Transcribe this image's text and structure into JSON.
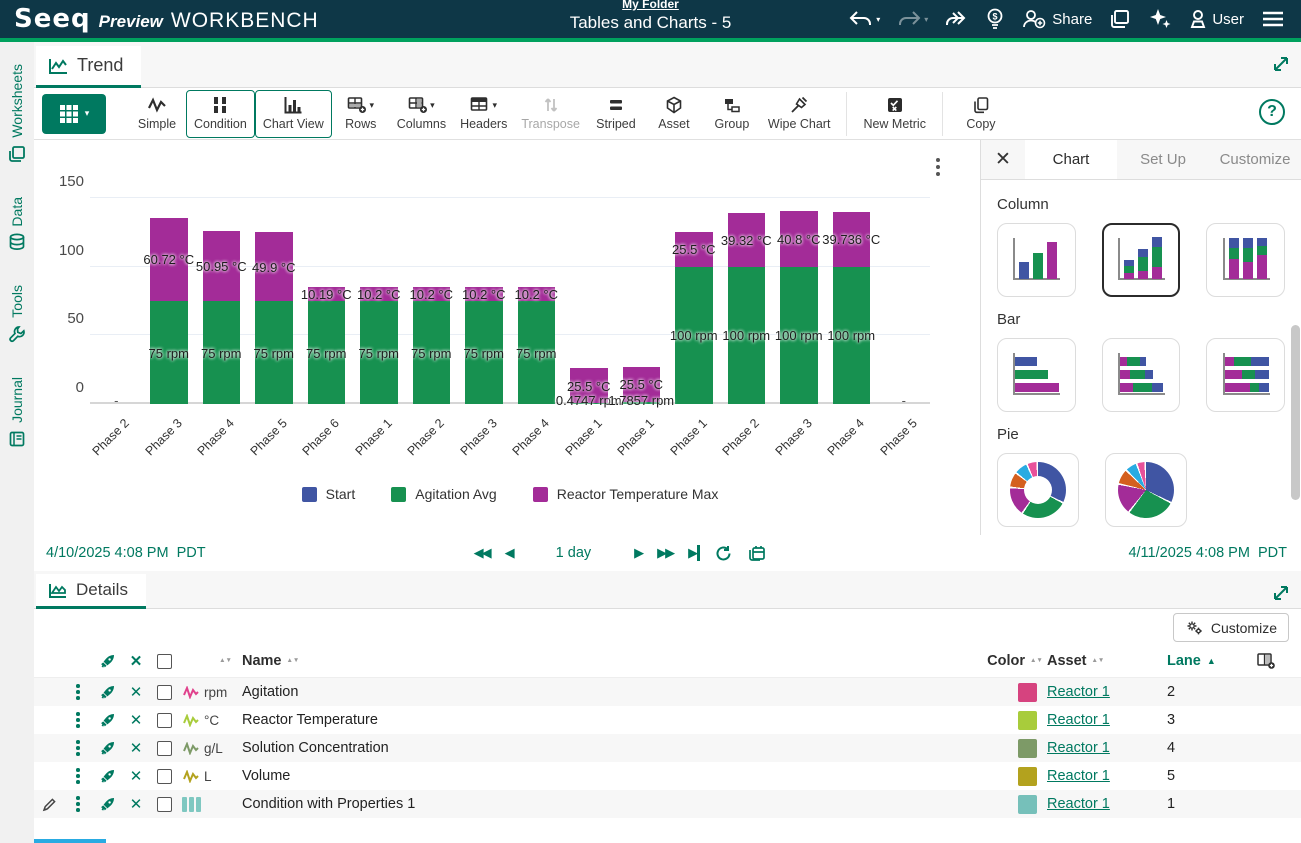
{
  "header": {
    "logo_seeq": "Seeq",
    "logo_preview": "Preview",
    "logo_workbench": "WORKBENCH",
    "folder_link": "My Folder",
    "title": "Tables and Charts - 5",
    "share_label": "Share",
    "user_label": "User"
  },
  "sidebar": {
    "items": [
      {
        "label": "Worksheets",
        "icon": "worksheets-icon"
      },
      {
        "label": "Data",
        "icon": "database-icon"
      },
      {
        "label": "Tools",
        "icon": "wrench-icon"
      },
      {
        "label": "Journal",
        "icon": "journal-icon"
      }
    ]
  },
  "trend": {
    "tab_label": "Trend",
    "toolbar": {
      "buttons": [
        {
          "label": "Simple"
        },
        {
          "label": "Condition"
        },
        {
          "label": "Chart View"
        },
        {
          "label": "Rows"
        },
        {
          "label": "Columns"
        },
        {
          "label": "Headers"
        },
        {
          "label": "Transpose"
        },
        {
          "label": "Striped"
        },
        {
          "label": "Asset"
        },
        {
          "label": "Group"
        },
        {
          "label": "Wipe Chart"
        },
        {
          "label": "New Metric"
        },
        {
          "label": "Copy"
        }
      ]
    }
  },
  "chart_data": {
    "type": "bar",
    "stacked": true,
    "categories": [
      "Phase 2",
      "Phase 3",
      "Phase 4",
      "Phase 5",
      "Phase 6",
      "Phase 1",
      "Phase 2",
      "Phase 3",
      "Phase 4",
      "Phase 1",
      "Phase 1",
      "Phase 1",
      "Phase 2",
      "Phase 3",
      "Phase 4",
      "Phase 5"
    ],
    "series": [
      {
        "name": "Start",
        "color": "#4055a3",
        "values": [
          null,
          null,
          null,
          null,
          null,
          null,
          null,
          null,
          null,
          null,
          null,
          null,
          null,
          null,
          null,
          null
        ],
        "labels": [
          "",
          "",
          "",
          "",
          "",
          "",
          "",
          "",
          "",
          "",
          "",
          "",
          "",
          "",
          "",
          ""
        ]
      },
      {
        "name": "Agitation Avg",
        "color": "#179150",
        "values": [
          null,
          75,
          75,
          75,
          75,
          75,
          75,
          75,
          75,
          0.4747,
          1.7857,
          100,
          100,
          100,
          100,
          null
        ],
        "labels": [
          "",
          "75 rpm",
          "75 rpm",
          "75 rpm",
          "75 rpm",
          "75 rpm",
          "75 rpm",
          "75 rpm",
          "75 rpm",
          "0.4747 rpm",
          "1.7857 rpm",
          "100 rpm",
          "100 rpm",
          "100 rpm",
          "100 rpm",
          ""
        ]
      },
      {
        "name": "Reactor Temperature Max",
        "color": "#a32c98",
        "values": [
          null,
          60.72,
          50.95,
          49.9,
          10.19,
          10.2,
          10.2,
          10.2,
          10.2,
          25.5,
          25.5,
          25.5,
          39.32,
          40.8,
          39.736,
          null
        ],
        "labels": [
          "",
          "60.72 °C",
          "50.95 °C",
          "49.9 °C",
          "10.19 °C",
          "10.2 °C",
          "10.2 °C",
          "10.2 °C",
          "10.2 °C",
          "25.5 °C",
          "25.5 °C",
          "25.5 °C",
          "39.32 °C",
          "40.8 °C",
          "39.736 °C",
          ""
        ]
      }
    ],
    "ylim": [
      0,
      150
    ],
    "yticks": [
      0,
      50,
      100,
      150
    ],
    "legend": [
      "Start",
      "Agitation Avg",
      "Reactor Temperature Max"
    ],
    "legend_position": "bottom",
    "grid": true,
    "null_marker": "-"
  },
  "side_panel": {
    "tabs": [
      {
        "label": "Chart"
      },
      {
        "label": "Set Up"
      },
      {
        "label": "Customize"
      }
    ],
    "sections": [
      {
        "label": "Column",
        "thumbnails": [
          "column-grouped-icon",
          "column-stacked-icon",
          "column-percent-stacked-icon"
        ],
        "selected": "column-stacked-icon"
      },
      {
        "label": "Bar",
        "thumbnails": [
          "bar-grouped-icon",
          "bar-stacked-icon",
          "bar-percent-stacked-icon"
        ]
      },
      {
        "label": "Pie",
        "thumbnails": [
          "donut-chart-icon",
          "pie-chart-icon"
        ]
      }
    ]
  },
  "time_bar": {
    "start": "4/10/2025 4:08 PM",
    "start_tz": "PDT",
    "duration": "1 day",
    "end": "4/11/2025 4:08 PM",
    "end_tz": "PDT"
  },
  "details": {
    "tab_label": "Details",
    "customize_label": "Customize",
    "columns": {
      "name": "Name",
      "color": "Color",
      "asset": "Asset",
      "lane": "Lane"
    },
    "rows": [
      {
        "unit": "rpm",
        "name": "Agitation",
        "color": "#d6437f",
        "asset": "Reactor 1",
        "lane": "2",
        "type": "signal"
      },
      {
        "unit": "°C",
        "name": "Reactor Temperature",
        "color": "#a8cc3b",
        "asset": "Reactor 1",
        "lane": "3",
        "type": "signal"
      },
      {
        "unit": "g/L",
        "name": "Solution Concentration",
        "color": "#7d9a67",
        "asset": "Reactor 1",
        "lane": "4",
        "type": "signal"
      },
      {
        "unit": "L",
        "name": "Volume",
        "color": "#b3a21e",
        "asset": "Reactor 1",
        "lane": "5",
        "type": "signal"
      },
      {
        "unit": "",
        "name": "Condition with Properties 1",
        "color": "#76c0ba",
        "asset": "Reactor 1",
        "lane": "1",
        "type": "condition"
      }
    ]
  }
}
